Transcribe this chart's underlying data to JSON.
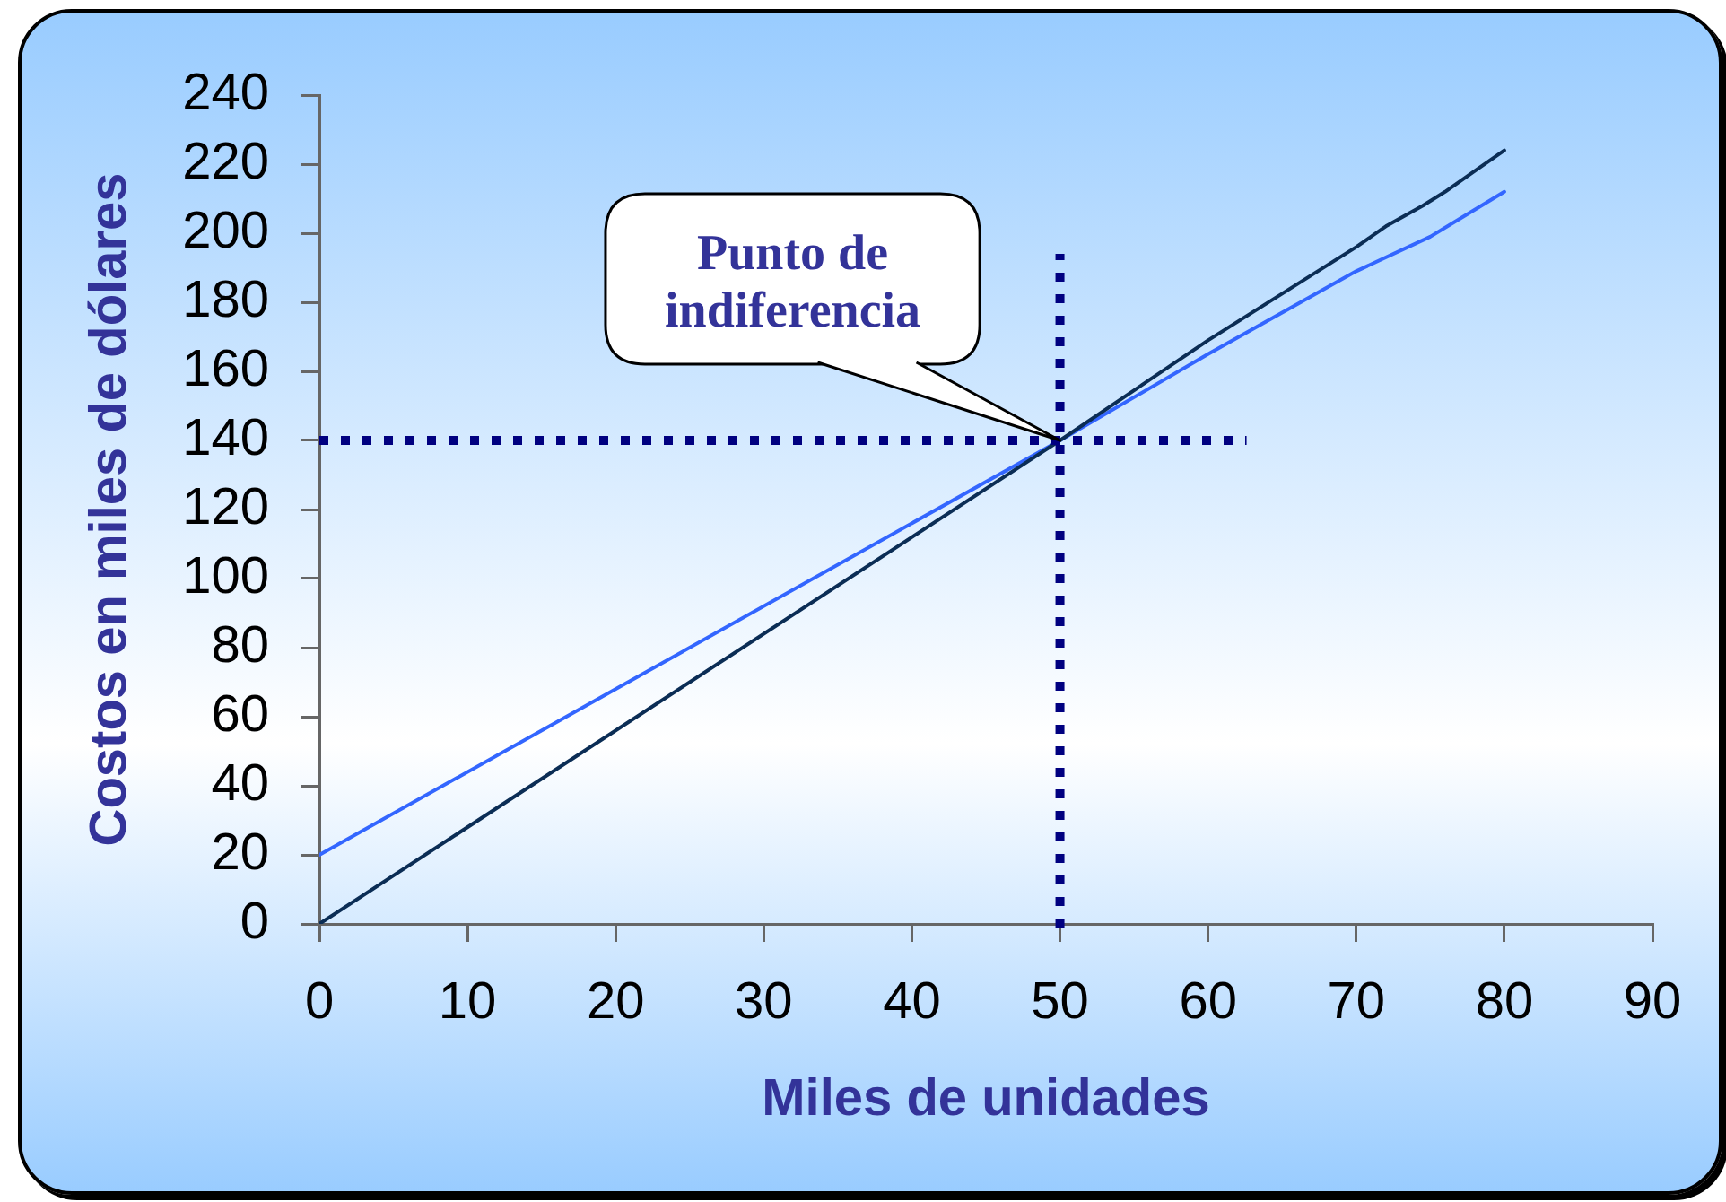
{
  "chart_data": {
    "type": "line",
    "xlabel": "Miles de unidades",
    "ylabel": "Costos en miles de dólares",
    "xlim": [
      0,
      90
    ],
    "xticks": [
      0,
      10,
      20,
      30,
      40,
      50,
      60,
      70,
      80,
      90
    ],
    "ylim": [
      0,
      240
    ],
    "yticks": [
      0,
      20,
      40,
      60,
      80,
      100,
      120,
      140,
      160,
      180,
      200,
      220,
      240
    ],
    "series": [
      {
        "color": "#0b2d55",
        "x": [
          0,
          50,
          60,
          70,
          72,
          74.5,
          76,
          78,
          80
        ],
        "values": [
          0,
          140,
          169,
          196,
          202,
          208,
          212,
          218,
          224
        ]
      },
      {
        "color": "#3366ff",
        "x": [
          0,
          50,
          60,
          70,
          75,
          80
        ],
        "values": [
          20,
          140,
          165,
          189,
          199,
          212
        ]
      }
    ],
    "ref_lines": [
      {
        "axis": "x",
        "value": 50,
        "color": "#000080",
        "line_style": "dotted"
      },
      {
        "axis": "y",
        "value": 140,
        "color": "#000080",
        "line_style": "dotted"
      }
    ],
    "annotations": [
      {
        "text": "Punto de\nindiferencia",
        "x": 50,
        "y": 140
      }
    ]
  }
}
